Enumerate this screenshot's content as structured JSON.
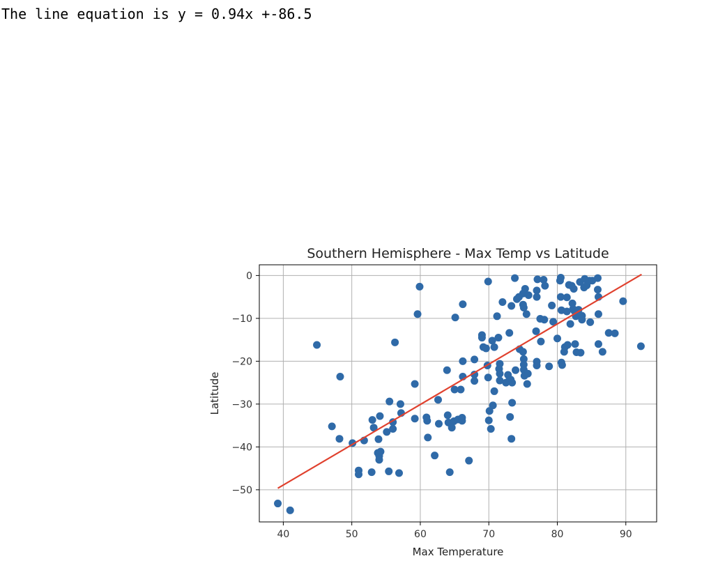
{
  "output": {
    "equation_text": "The line equation is y = 0.94x +-86.5"
  },
  "colors": {
    "points": "#2f6aa8",
    "fit_line": "#e0412e",
    "grid": "#b0b0b0",
    "axes": "#000000"
  },
  "chart_data": {
    "type": "scatter",
    "title": "Southern Hemisphere - Max Temp vs Latitude",
    "xlabel": "Max Temperature",
    "ylabel": "Latitude",
    "xlim": [
      36.5,
      94.5
    ],
    "ylim": [
      -57.5,
      2.5
    ],
    "xticks": [
      40,
      50,
      60,
      70,
      80,
      90
    ],
    "yticks": [
      0,
      -10,
      -20,
      -30,
      -40,
      -50
    ],
    "grid": true,
    "regression": {
      "slope": 0.94,
      "intercept": -86.5,
      "x_range": [
        39.2,
        92.3
      ]
    },
    "points": [
      [
        39.2,
        -53.2
      ],
      [
        41,
        -54.8
      ],
      [
        44.9,
        -16.2
      ],
      [
        47.1,
        -35.2
      ],
      [
        48.3,
        -23.6
      ],
      [
        48.2,
        -38.1
      ],
      [
        50.1,
        -39.1
      ],
      [
        51,
        -45.5
      ],
      [
        51,
        -46.4
      ],
      [
        51.8,
        -38.5
      ],
      [
        52.9,
        -45.9
      ],
      [
        53,
        -33.7
      ],
      [
        53.2,
        -35.5
      ],
      [
        53.9,
        -38.2
      ],
      [
        53.8,
        -41.4
      ],
      [
        54,
        -42.1
      ],
      [
        54,
        -43
      ],
      [
        54.2,
        -41.1
      ],
      [
        54.1,
        -32.8
      ],
      [
        55.1,
        -36.5
      ],
      [
        55.5,
        -29.4
      ],
      [
        55.4,
        -45.7
      ],
      [
        56,
        -34.2
      ],
      [
        56,
        -35.8
      ],
      [
        56.3,
        -15.6
      ],
      [
        56.9,
        -46.1
      ],
      [
        57.1,
        -30
      ],
      [
        57.2,
        -32.1
      ],
      [
        59.2,
        -25.3
      ],
      [
        59.2,
        -33.4
      ],
      [
        59.6,
        -9
      ],
      [
        59.9,
        -2.6
      ],
      [
        60.9,
        -33.1
      ],
      [
        61,
        -33.9
      ],
      [
        61.1,
        -37.8
      ],
      [
        62.1,
        -42
      ],
      [
        62.6,
        -29
      ],
      [
        62.7,
        -34.6
      ],
      [
        63.9,
        -22.1
      ],
      [
        64,
        -32.6
      ],
      [
        64.1,
        -34.3
      ],
      [
        64.3,
        -45.9
      ],
      [
        64.6,
        -35.5
      ],
      [
        64.9,
        -34
      ],
      [
        65,
        -26.6
      ],
      [
        65.1,
        -9.8
      ],
      [
        65.5,
        -33.6
      ],
      [
        65.9,
        -26.6
      ],
      [
        66.1,
        -33.2
      ],
      [
        66.1,
        -33.9
      ],
      [
        66.2,
        -20
      ],
      [
        66.2,
        -23.6
      ],
      [
        66.2,
        -6.7
      ],
      [
        67.1,
        -43.2
      ],
      [
        67.9,
        -19.6
      ],
      [
        67.9,
        -23.1
      ],
      [
        67.9,
        -24.6
      ],
      [
        69,
        -13.9
      ],
      [
        69,
        -14.5
      ],
      [
        69.2,
        -16.7
      ],
      [
        69.6,
        -17
      ],
      [
        69.8,
        -21
      ],
      [
        69.9,
        -23.8
      ],
      [
        69.9,
        -1.4
      ],
      [
        70,
        -33.8
      ],
      [
        70.1,
        -31.6
      ],
      [
        70.3,
        -35.8
      ],
      [
        70.5,
        -15.2
      ],
      [
        70.6,
        -30.3
      ],
      [
        70.8,
        -16.7
      ],
      [
        70.8,
        -27
      ],
      [
        71.2,
        -9.5
      ],
      [
        71.4,
        -14.5
      ],
      [
        71.6,
        -20.6
      ],
      [
        71.5,
        -21.8
      ],
      [
        71.6,
        -22.9
      ],
      [
        71.6,
        -24.5
      ],
      [
        72,
        -6.2
      ],
      [
        72.5,
        -25
      ],
      [
        72.8,
        -23.2
      ],
      [
        73,
        -13.4
      ],
      [
        73,
        -24.5
      ],
      [
        73.1,
        -33
      ],
      [
        73.2,
        -24.3
      ],
      [
        73.3,
        -7.1
      ],
      [
        73.3,
        -38.1
      ],
      [
        73.4,
        -25
      ],
      [
        73.4,
        -29.7
      ],
      [
        73.8,
        -0.6
      ],
      [
        73.9,
        -22.1
      ],
      [
        74.1,
        -5.5
      ],
      [
        74.4,
        -5
      ],
      [
        74.5,
        -17.2
      ],
      [
        75,
        -6.8
      ],
      [
        75,
        -4.2
      ],
      [
        75.1,
        -7.5
      ],
      [
        75,
        -17.8
      ],
      [
        75.1,
        -19.5
      ],
      [
        75.1,
        -20.8
      ],
      [
        75.1,
        -22
      ],
      [
        75.2,
        -23.4
      ],
      [
        75.3,
        -3.1
      ],
      [
        75.5,
        -9
      ],
      [
        75.6,
        -25.3
      ],
      [
        75.7,
        -22.9
      ],
      [
        75.8,
        -4.6
      ],
      [
        76.9,
        -13
      ],
      [
        77,
        -3.5
      ],
      [
        77,
        -5
      ],
      [
        77.1,
        -0.9
      ],
      [
        77,
        -20.1
      ],
      [
        77,
        -21
      ],
      [
        77.5,
        -10.1
      ],
      [
        77.6,
        -15.4
      ],
      [
        78,
        -1
      ],
      [
        78.1,
        -10.3
      ],
      [
        78.2,
        -2.4
      ],
      [
        78.8,
        -21.2
      ],
      [
        79.2,
        -7
      ],
      [
        79.4,
        -10.8
      ],
      [
        80,
        -14.7
      ],
      [
        80.4,
        -1.2
      ],
      [
        80.5,
        -0.5
      ],
      [
        80.5,
        -5
      ],
      [
        80.6,
        -8.1
      ],
      [
        80.6,
        -20.3
      ],
      [
        80.7,
        -20.9
      ],
      [
        81,
        -17.8
      ],
      [
        81.1,
        -16.7
      ],
      [
        81.4,
        -5.1
      ],
      [
        81.4,
        -8.4
      ],
      [
        81.5,
        -16.2
      ],
      [
        81.7,
        -2.2
      ],
      [
        81.9,
        -11.3
      ],
      [
        82.1,
        -2.4
      ],
      [
        82.2,
        -6.5
      ],
      [
        82.3,
        -7.8
      ],
      [
        82.4,
        -3.1
      ],
      [
        82.5,
        -8.3
      ],
      [
        82.6,
        -16
      ],
      [
        82.7,
        -9.5
      ],
      [
        82.8,
        -17.9
      ],
      [
        83.1,
        -8
      ],
      [
        83.3,
        -1.5
      ],
      [
        83.4,
        -18
      ],
      [
        83.6,
        -9.4
      ],
      [
        83.6,
        -10.3
      ],
      [
        83.9,
        -2.8
      ],
      [
        84,
        -0.8
      ],
      [
        84.3,
        -2.3
      ],
      [
        84.7,
        -1.2
      ],
      [
        84.8,
        -10.9
      ],
      [
        85.1,
        -1.2
      ],
      [
        85.9,
        -0.6
      ],
      [
        85.9,
        -3.3
      ],
      [
        86,
        -5
      ],
      [
        86,
        -16
      ],
      [
        86,
        -9
      ],
      [
        86.6,
        -17.8
      ],
      [
        87.5,
        -13.4
      ],
      [
        88.4,
        -13.5
      ],
      [
        89.6,
        -6
      ],
      [
        92.2,
        -16.5
      ]
    ]
  }
}
